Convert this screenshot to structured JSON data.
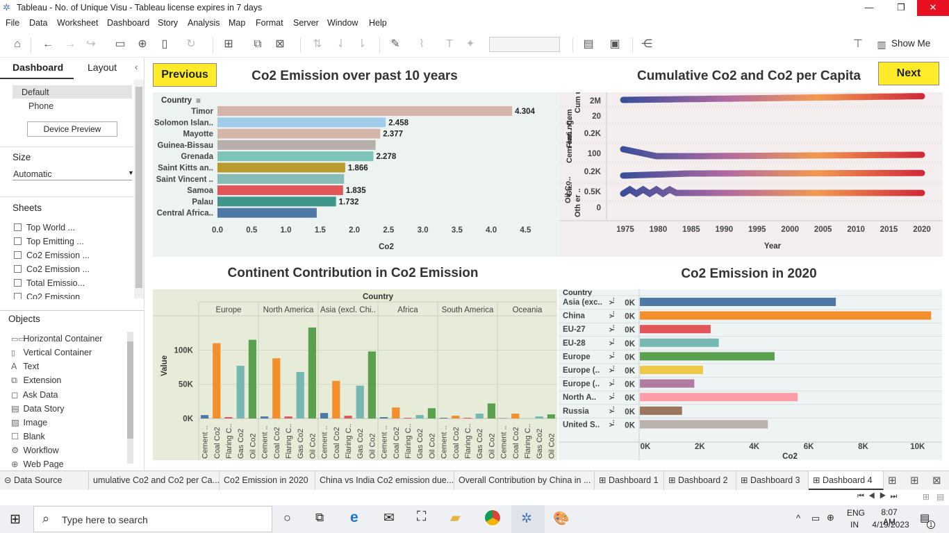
{
  "window": {
    "title": "Tableau - No. of Unique Visu - Tableau license expires in 7 days"
  },
  "menu": [
    "File",
    "Data",
    "Worksheet",
    "Dashboard",
    "Story",
    "Analysis",
    "Map",
    "Format",
    "Server",
    "Window",
    "Help"
  ],
  "toolbar": {
    "show_me": "Show Me"
  },
  "left_pane": {
    "tab_dashboard": "Dashboard",
    "tab_layout": "Layout",
    "device_default": "Default",
    "device_phone": "Phone",
    "device_preview": "Device Preview",
    "size_label": "Size",
    "size_value": "Automatic",
    "sheets_label": "Sheets",
    "sheets": [
      "Top World ...",
      "Top Emitting ...",
      "Co2 Emission ...",
      "Co2 Emission ...",
      "Total Emissio...",
      "Co2 Emission"
    ],
    "objects_label": "Objects",
    "objects": [
      "Horizontal Container",
      "Vertical Container",
      "Text",
      "Extension",
      "Ask Data",
      "Data Story",
      "Image",
      "Blank",
      "Workflow",
      "Web Page"
    ]
  },
  "dashboard": {
    "prev": "Previous",
    "next": "Next",
    "title1": "Co2 Emission over past 10 years",
    "title2": "Cumulative Co2 and Co2 per Capita",
    "title3": "Continent Contribution in Co2 Emission",
    "title4": "Co2 Emission in 2020"
  },
  "chart_data": [
    {
      "type": "bar",
      "orientation": "horizontal",
      "title": "Co2 Emission over past 10 years",
      "row_header": "Country",
      "xlabel": "Co2",
      "categories": [
        "Timor",
        "Solomon Islan..",
        "Mayotte",
        "Guinea-Bissau",
        "Grenada",
        "Saint Kitts an..",
        "Saint Vincent ..",
        "Samoa",
        "Palau",
        "Central Africa.."
      ],
      "values": [
        4.304,
        2.458,
        2.377,
        2.31,
        2.278,
        1.866,
        1.85,
        1.835,
        1.732,
        1.45
      ],
      "labels": [
        "4.304",
        "2.458",
        "2.377",
        "",
        "2.278",
        "1.866",
        "",
        "1.835",
        "1.732",
        ""
      ],
      "colors": [
        "#d4b5a7",
        "#a1cbe9",
        "#d4b5a7",
        "#b8b0ac",
        "#7fc4b8",
        "#b89a2e",
        "#86bcb6",
        "#e15759",
        "#41968a",
        "#4e79a7"
      ],
      "xticks": [
        "0.0",
        "0.5",
        "1.0",
        "1.5",
        "2.0",
        "2.5",
        "3.0",
        "3.5",
        "4.0",
        "4.5"
      ],
      "xlim": [
        0,
        4.8
      ]
    },
    {
      "type": "line",
      "title": "Cumulative Co2 and Co2 per Capita",
      "xlabel": "Year",
      "xticks": [
        "1975",
        "1980",
        "1985",
        "1990",
        "1995",
        "2000",
        "2005",
        "2010",
        "2015",
        "2020"
      ],
      "row_labels": [
        "Cem",
        "Cum ula..",
        "Cem ent..",
        "Flari ng..",
        "Ga..",
        "Oil Co..",
        "Oth er .."
      ],
      "yticks": [
        "2M",
        "20",
        "0.2K",
        "100",
        "0.2K",
        "0.5K",
        "0"
      ]
    },
    {
      "type": "bar",
      "title": "Continent Contribution in Co2 Emission",
      "column_header": "Country",
      "ylabel": "Value",
      "yticks": [
        "100K",
        "50K",
        "0K"
      ],
      "ylim": [
        0,
        140000
      ],
      "continents": [
        "Europe",
        "North America",
        "Asia (excl. Chi..",
        "Africa",
        "South America",
        "Oceania"
      ],
      "measures": [
        "Cement ..",
        "Coal Co2",
        "Flaring C..",
        "Gas Co2",
        "Oil Co2"
      ],
      "measure_colors": [
        "#4e79a7",
        "#f28e2b",
        "#e15759",
        "#76b7b2",
        "#59a14f"
      ],
      "values": [
        [
          5000,
          110000,
          2000,
          77000,
          115000
        ],
        [
          3000,
          88000,
          3000,
          68000,
          133000
        ],
        [
          8000,
          55000,
          4000,
          48000,
          98000
        ],
        [
          2000,
          16000,
          1000,
          5000,
          15000
        ],
        [
          1000,
          4000,
          1000,
          7000,
          22000
        ],
        [
          500,
          7000,
          0,
          3000,
          6000
        ]
      ]
    },
    {
      "type": "bar",
      "orientation": "horizontal",
      "title": "Co2 Emission in 2020",
      "row_header": "Country",
      "xlabel": "Co2",
      "categories": [
        "Asia (exc..",
        "China",
        "EU-27",
        "EU-28",
        "Europe",
        "Europe (..",
        "Europe (..",
        "North A..",
        "Russia",
        "United S.."
      ],
      "values": [
        7200,
        10700,
        2600,
        2900,
        4950,
        2320,
        2000,
        5800,
        1550,
        4700
      ],
      "colors": [
        "#4e79a7",
        "#f28e2b",
        "#e15759",
        "#76b7b2",
        "#59a14f",
        "#edc948",
        "#b07aa1",
        "#ff9da7",
        "#9c755f",
        "#bab0ac"
      ],
      "row_sub": "Y..",
      "row_val": "0K",
      "xticks": [
        "0K",
        "2K",
        "4K",
        "6K",
        "8K",
        "10K"
      ],
      "xlim": [
        0,
        11000
      ]
    }
  ],
  "sheet_tabs": [
    "Data Source",
    "umulative Co2 and Co2 per Ca...",
    "Co2 Emission in 2020",
    "China vs India Co2 emission due...",
    "Overall Contribution by China in ...",
    "Dashboard 1",
    "Dashboard 2",
    "Dashboard 3",
    "Dashboard 4"
  ],
  "taskbar": {
    "search_placeholder": "Type here to search",
    "lang1": "ENG",
    "lang2": "IN",
    "time": "8:07 AM",
    "date": "4/19/2023",
    "notif": "1"
  }
}
